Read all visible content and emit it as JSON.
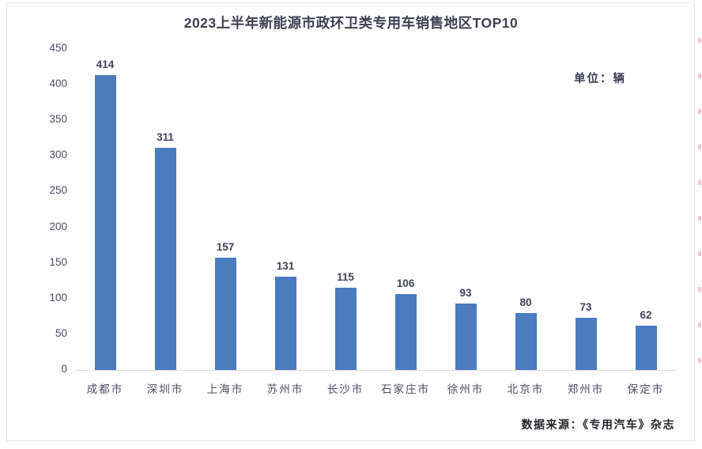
{
  "title": "2023上半年新能源市政环卫类专用车销售地区TOP10",
  "unit_label": "单位：辆",
  "source_label": "数据来源：《专用汽车》杂志",
  "colors": {
    "bar": "#4A7CBE",
    "title_text": "#3d3f52",
    "axis_text": "#4c4c60",
    "value_text": "#3f4156",
    "baseline": "#d8d8d8",
    "inner_border": "#ece2e6",
    "edge_dash": "#f2c3ca",
    "source_text": "#24242c"
  },
  "chart_data": {
    "type": "bar",
    "title": "2023上半年新能源市政环卫类专用车销售地区TOP10",
    "categories": [
      "成都市",
      "深圳市",
      "上海市",
      "苏州市",
      "长沙市",
      "石家庄市",
      "徐州市",
      "北京市",
      "郑州市",
      "保定市"
    ],
    "values": [
      414,
      311,
      157,
      131,
      115,
      106,
      93,
      80,
      73,
      62
    ],
    "xlabel": "",
    "ylabel": "单位：辆",
    "ylim": [
      0,
      450
    ],
    "yticks": [
      0,
      50,
      100,
      150,
      200,
      250,
      300,
      350,
      400,
      450
    ],
    "grid": false,
    "legend": "none",
    "value_labels_shown": true,
    "bar_color": "#4A7CBE"
  }
}
